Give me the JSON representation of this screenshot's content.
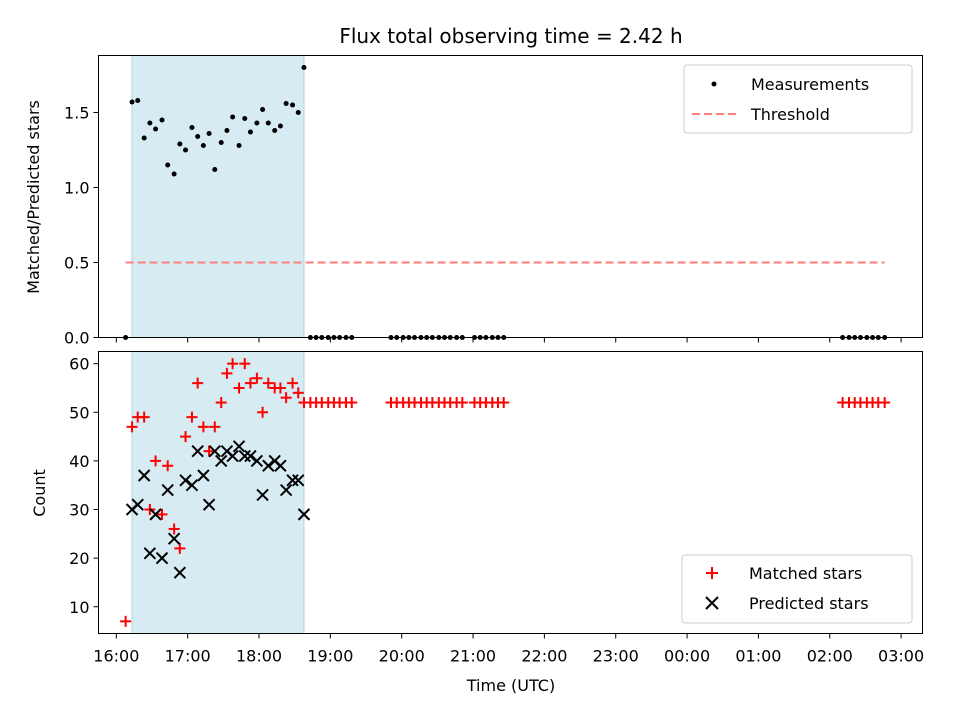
{
  "chart_data": [
    {
      "type": "scatter",
      "title": "Flux total observing time = 2.42 h",
      "xlabel": "",
      "ylabel": "Matched/Predicted stars",
      "xlim": [
        15.75,
        27.3
      ],
      "ylim": [
        0,
        1.88
      ],
      "yticks": [
        0.0,
        0.5,
        1.0,
        1.5
      ],
      "ytick_labels": [
        "0.0",
        "0.5",
        "1.0",
        "1.5"
      ],
      "shaded_region": [
        16.22,
        18.63
      ],
      "shade_color": "#add8e6",
      "legend_position": "upper right",
      "series": [
        {
          "name": "Measurements",
          "marker": "dot",
          "color": "#000000",
          "x": [
            16.13,
            16.22,
            16.3,
            16.39,
            16.47,
            16.55,
            16.64,
            16.72,
            16.81,
            16.89,
            16.97,
            17.06,
            17.14,
            17.22,
            17.3,
            17.38,
            17.47,
            17.55,
            17.63,
            17.72,
            17.8,
            17.88,
            17.97,
            18.05,
            18.13,
            18.22,
            18.3,
            18.38,
            18.47,
            18.55,
            18.63,
            18.72,
            18.8,
            18.88,
            18.97,
            19.05,
            19.13,
            19.22,
            19.3,
            19.85,
            19.93,
            20.02,
            20.1,
            20.18,
            20.27,
            20.35,
            20.43,
            20.52,
            20.6,
            20.68,
            20.77,
            20.85,
            21.02,
            21.1,
            21.18,
            21.27,
            21.35,
            21.43,
            26.18,
            26.27,
            26.35,
            26.43,
            26.52,
            26.6,
            26.68,
            26.77
          ],
          "y": [
            0,
            1.57,
            1.58,
            1.33,
            1.43,
            1.39,
            1.45,
            1.15,
            1.09,
            1.29,
            1.25,
            1.4,
            1.34,
            1.28,
            1.36,
            1.12,
            1.3,
            1.38,
            1.47,
            1.28,
            1.46,
            1.37,
            1.43,
            1.52,
            1.43,
            1.38,
            1.41,
            1.56,
            1.55,
            1.5,
            1.8,
            0,
            0,
            0,
            0,
            0,
            0,
            0,
            0,
            0,
            0,
            0,
            0,
            0,
            0,
            0,
            0,
            0,
            0,
            0,
            0,
            0,
            0,
            0,
            0,
            0,
            0,
            0,
            0,
            0,
            0,
            0,
            0,
            0,
            0,
            0
          ]
        },
        {
          "name": "Threshold",
          "type": "line",
          "style": "dashed",
          "color": "#ff7f7f",
          "x": [
            16.13,
            26.77
          ],
          "y": [
            0.5,
            0.5
          ]
        }
      ]
    },
    {
      "type": "scatter",
      "title": "",
      "xlabel": "Time (UTC)",
      "ylabel": "Count",
      "xlim": [
        15.75,
        27.3
      ],
      "ylim": [
        4.5,
        62.5
      ],
      "yticks": [
        10,
        20,
        30,
        40,
        50,
        60
      ],
      "xticks": [
        16,
        17,
        18,
        19,
        20,
        21,
        22,
        23,
        24,
        25,
        26,
        27
      ],
      "xtick_labels": [
        "16:00",
        "17:00",
        "18:00",
        "19:00",
        "20:00",
        "21:00",
        "22:00",
        "23:00",
        "00:00",
        "01:00",
        "02:00",
        "03:00"
      ],
      "shaded_region": [
        16.22,
        18.63
      ],
      "shade_color": "#add8e6",
      "legend_position": "lower right",
      "series": [
        {
          "name": "Matched stars",
          "marker": "plus",
          "color": "#ff0000",
          "x": [
            16.13,
            16.22,
            16.3,
            16.39,
            16.47,
            16.55,
            16.64,
            16.72,
            16.81,
            16.89,
            16.97,
            17.06,
            17.14,
            17.22,
            17.3,
            17.38,
            17.47,
            17.55,
            17.63,
            17.72,
            17.8,
            17.88,
            17.97,
            18.05,
            18.13,
            18.22,
            18.3,
            18.38,
            18.47,
            18.55,
            18.63,
            18.72,
            18.8,
            18.88,
            18.97,
            19.05,
            19.13,
            19.22,
            19.3,
            19.85,
            19.93,
            20.02,
            20.1,
            20.18,
            20.27,
            20.35,
            20.43,
            20.52,
            20.6,
            20.68,
            20.77,
            20.85,
            21.02,
            21.1,
            21.18,
            21.27,
            21.35,
            21.43,
            26.18,
            26.27,
            26.35,
            26.43,
            26.52,
            26.6,
            26.68,
            26.77
          ],
          "y": [
            7,
            47,
            49,
            49,
            30,
            40,
            29,
            39,
            26,
            22,
            45,
            49,
            56,
            47,
            42,
            47,
            52,
            58,
            60,
            55,
            60,
            56,
            57,
            50,
            56,
            55,
            55,
            53,
            56,
            54,
            52,
            52,
            52,
            52,
            52,
            52,
            52,
            52,
            52,
            52,
            52,
            52,
            52,
            52,
            52,
            52,
            52,
            52,
            52,
            52,
            52,
            52,
            52,
            52,
            52,
            52,
            52,
            52,
            52,
            52,
            52,
            52,
            52,
            52,
            52,
            52
          ]
        },
        {
          "name": "Predicted stars",
          "marker": "x",
          "color": "#000000",
          "x": [
            16.22,
            16.3,
            16.39,
            16.47,
            16.55,
            16.64,
            16.72,
            16.81,
            16.89,
            16.97,
            17.06,
            17.14,
            17.22,
            17.3,
            17.38,
            17.47,
            17.55,
            17.63,
            17.72,
            17.8,
            17.88,
            17.97,
            18.05,
            18.13,
            18.22,
            18.3,
            18.38,
            18.47,
            18.55,
            18.63
          ],
          "y": [
            30,
            31,
            37,
            21,
            29,
            20,
            34,
            24,
            17,
            36,
            35,
            42,
            37,
            31,
            42,
            40,
            42,
            41,
            43,
            41,
            41,
            40,
            33,
            39,
            40,
            39,
            34,
            36,
            36,
            29
          ]
        }
      ]
    }
  ]
}
